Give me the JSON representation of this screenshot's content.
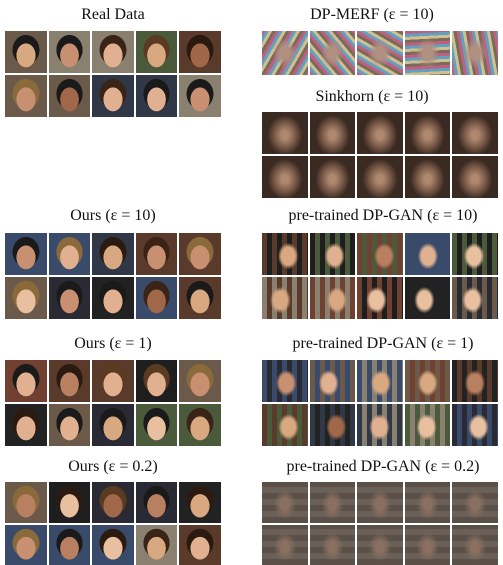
{
  "panels": [
    {
      "title": "Real Data"
    },
    {
      "title": "DP-MERF (ε = 10)"
    },
    {
      "title": "Sinkhorn (ε = 10)"
    },
    {
      "title": "Ours (ε = 10)"
    },
    {
      "title": "pre-trained DP-GAN (ε = 10)"
    },
    {
      "title": "Ours (ε = 1)"
    },
    {
      "title": "pre-trained DP-GAN (ε = 1)"
    },
    {
      "title": "Ours (ε = 0.2)"
    },
    {
      "title": "pre-trained DP-GAN (ε = 0.2)"
    }
  ]
}
